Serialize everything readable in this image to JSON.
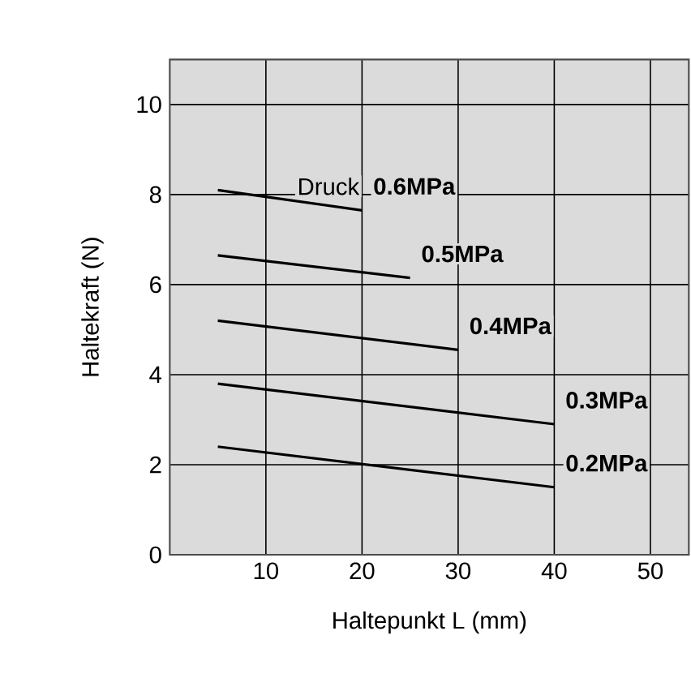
{
  "chart_data": {
    "type": "line",
    "xlabel": "Haltepunkt L (mm)",
    "ylabel": "Haltekraft (N)",
    "xlim": [
      0,
      54
    ],
    "ylim": [
      0,
      11
    ],
    "xticks": [
      10,
      20,
      30,
      40,
      50
    ],
    "yticks": [
      0,
      2,
      4,
      6,
      8,
      10
    ],
    "grid": true,
    "legend": false,
    "annotations": [
      "Druck"
    ],
    "series": [
      {
        "name": "0.6MPa",
        "color": "#000000",
        "x": [
          5,
          20
        ],
        "values": [
          8.1,
          7.65
        ]
      },
      {
        "name": "0.5MPa",
        "color": "#000000",
        "x": [
          5,
          25
        ],
        "values": [
          6.65,
          6.15
        ]
      },
      {
        "name": "0.4MPa",
        "color": "#000000",
        "x": [
          5,
          30
        ],
        "values": [
          5.2,
          4.55
        ]
      },
      {
        "name": "0.3MPa",
        "color": "#000000",
        "x": [
          5,
          40
        ],
        "values": [
          3.8,
          2.9
        ]
      },
      {
        "name": "0.2MPa",
        "color": "#000000",
        "x": [
          5,
          40
        ],
        "values": [
          2.4,
          1.5
        ]
      }
    ]
  }
}
